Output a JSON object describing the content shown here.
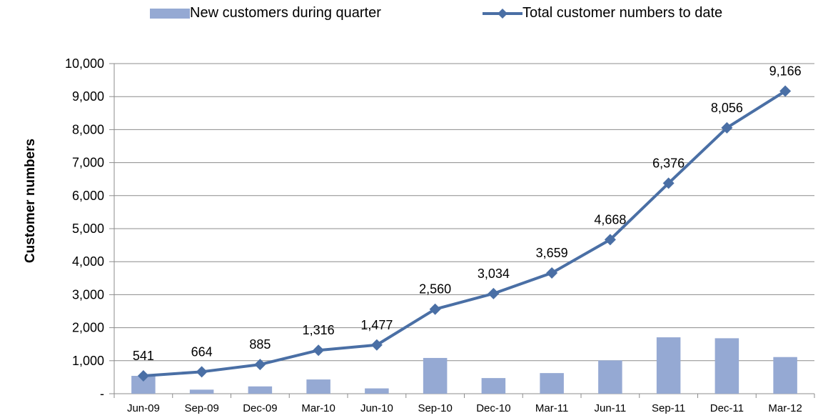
{
  "chart_data": {
    "type": "bar+line",
    "categories": [
      "Jun-09",
      "Sep-09",
      "Dec-09",
      "Mar-10",
      "Jun-10",
      "Sep-10",
      "Dec-10",
      "Mar-11",
      "Jun-11",
      "Sep-11",
      "Dec-11",
      "Mar-12"
    ],
    "series": [
      {
        "name": "New customers during quarter",
        "type": "bar",
        "color": "#95a9d3",
        "values": [
          541,
          123,
          221,
          431,
          161,
          1083,
          474,
          625,
          1009,
          1708,
          1680,
          1110
        ]
      },
      {
        "name": "Total customer numbers to date",
        "type": "line",
        "color": "#4a6fa5",
        "values": [
          541,
          664,
          885,
          1316,
          1477,
          2560,
          3034,
          3659,
          4668,
          6376,
          8056,
          9166
        ],
        "data_labels": [
          "541",
          "664",
          "885",
          "1,316",
          "1,477",
          "2,560",
          "3,034",
          "3,659",
          "4,668",
          "6,376",
          "8,056",
          "9,166"
        ]
      }
    ],
    "ylabel": "Customer numbers",
    "ylim": [
      0,
      10000
    ],
    "yticks": [
      0,
      1000,
      2000,
      3000,
      4000,
      5000,
      6000,
      7000,
      8000,
      9000,
      10000
    ],
    "ytick_labels": [
      "-",
      "1,000",
      "2,000",
      "3,000",
      "4,000",
      "5,000",
      "6,000",
      "7,000",
      "8,000",
      "9,000",
      "10,000"
    ],
    "grid": true,
    "legend_position": "top"
  }
}
